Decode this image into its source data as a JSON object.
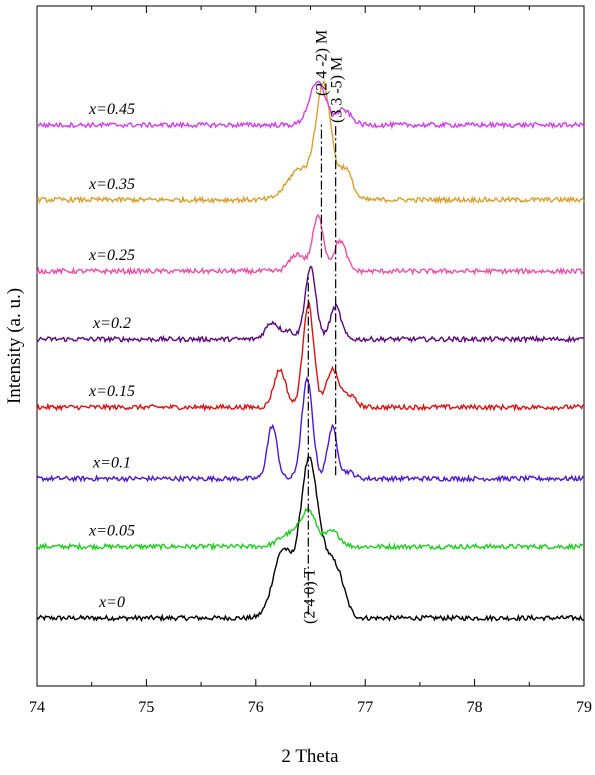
{
  "chart_data": {
    "type": "line",
    "title": "",
    "xlabel": "2 Theta",
    "ylabel": "Intensity (a. u.)",
    "xlim": [
      74,
      79
    ],
    "ylim": [
      0,
      10
    ],
    "x_ticks": [
      "74",
      "75",
      "76",
      "77",
      "78",
      "79"
    ],
    "y_ticks_shown": false,
    "grid": false,
    "legend": "none",
    "series": [
      {
        "label": "x=0",
        "color": "#000000",
        "baseline": 1.0,
        "peaks": [
          {
            "x": 76.25,
            "height": 1.0,
            "width": 0.09
          },
          {
            "x": 76.48,
            "height": 2.15,
            "width": 0.075
          },
          {
            "x": 76.62,
            "height": 0.7,
            "width": 0.08
          },
          {
            "x": 76.75,
            "height": 0.55,
            "width": 0.07
          }
        ]
      },
      {
        "label": "x=0.05",
        "color": "#22cc22",
        "baseline": 2.05,
        "peaks": [
          {
            "x": 76.3,
            "height": 0.18,
            "width": 0.09
          },
          {
            "x": 76.48,
            "height": 0.52,
            "width": 0.07
          },
          {
            "x": 76.7,
            "height": 0.22,
            "width": 0.07
          }
        ]
      },
      {
        "label": "x=0.1",
        "color": "#4b18d6",
        "baseline": 3.05,
        "peaks": [
          {
            "x": 76.15,
            "height": 0.78,
            "width": 0.045
          },
          {
            "x": 76.47,
            "height": 1.45,
            "width": 0.05
          },
          {
            "x": 76.7,
            "height": 0.75,
            "width": 0.045
          },
          {
            "x": 76.85,
            "height": 0.1,
            "width": 0.05
          }
        ]
      },
      {
        "label": "x=0.15",
        "color": "#dd1111",
        "baseline": 4.1,
        "peaks": [
          {
            "x": 76.22,
            "height": 0.55,
            "width": 0.055
          },
          {
            "x": 76.48,
            "height": 1.52,
            "width": 0.05
          },
          {
            "x": 76.7,
            "height": 0.55,
            "width": 0.055
          },
          {
            "x": 76.85,
            "height": 0.18,
            "width": 0.06
          }
        ]
      },
      {
        "label": "x=0.2",
        "color": "#5a0a7a",
        "baseline": 5.1,
        "peaks": [
          {
            "x": 76.15,
            "height": 0.25,
            "width": 0.06
          },
          {
            "x": 76.5,
            "height": 1.05,
            "width": 0.05
          },
          {
            "x": 76.73,
            "height": 0.48,
            "width": 0.05
          },
          {
            "x": 76.3,
            "height": 0.12,
            "width": 0.05
          }
        ]
      },
      {
        "label": "x=0.25",
        "color": "#ee4fa6",
        "baseline": 6.1,
        "peaks": [
          {
            "x": 76.38,
            "height": 0.25,
            "width": 0.07
          },
          {
            "x": 76.57,
            "height": 0.8,
            "width": 0.05
          },
          {
            "x": 76.77,
            "height": 0.45,
            "width": 0.055
          }
        ]
      },
      {
        "label": "x=0.35",
        "color": "#d9a030",
        "baseline": 7.15,
        "peaks": [
          {
            "x": 76.4,
            "height": 0.45,
            "width": 0.11
          },
          {
            "x": 76.62,
            "height": 1.65,
            "width": 0.07
          },
          {
            "x": 76.82,
            "height": 0.45,
            "width": 0.06
          }
        ]
      },
      {
        "label": "x=0.45",
        "color": "#d23ef0",
        "baseline": 8.25,
        "peaks": [
          {
            "x": 76.55,
            "height": 0.55,
            "width": 0.07
          },
          {
            "x": 76.62,
            "height": 0.15,
            "width": 0.05
          },
          {
            "x": 76.8,
            "height": 0.22,
            "width": 0.07
          }
        ]
      }
    ],
    "annotations": [
      {
        "text": "(2 4 -2) M",
        "x": 76.6
      },
      {
        "text": "(3 3 -5) M",
        "x": 76.73
      },
      {
        "text": "(2 4 0) T",
        "x": 76.48
      }
    ]
  }
}
